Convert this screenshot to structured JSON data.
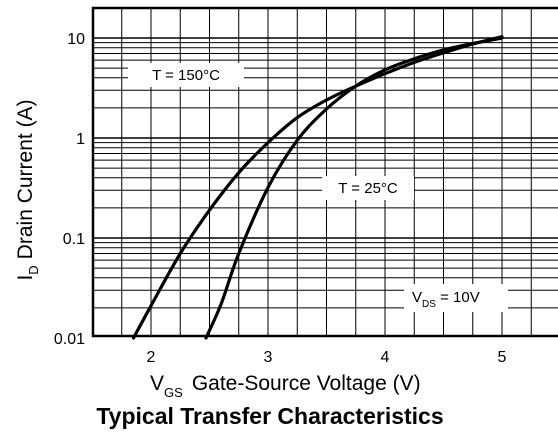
{
  "chart_data": {
    "type": "line",
    "title": "Typical Transfer Characteristics",
    "xlabel": {
      "main": "V",
      "sub": "GS",
      "rest": "Gate-Source Voltage (V)"
    },
    "ylabel": {
      "main": "I",
      "sub": "D",
      "rest": "Drain Current (A)"
    },
    "xlim": [
      1.5,
      5.5
    ],
    "ylim": [
      0.01,
      20
    ],
    "yscale": "log",
    "grid": true,
    "x_ticks": [
      2,
      3,
      4,
      5
    ],
    "x_tick_labels": [
      "2",
      "3",
      "4",
      "5"
    ],
    "y_ticks": [
      0.01,
      0.1,
      1,
      10
    ],
    "y_tick_labels": [
      "0.01",
      "0.1",
      "1",
      "10"
    ],
    "series": [
      {
        "name": "T = 150°C",
        "x": [
          1.85,
          2.0,
          2.25,
          2.5,
          2.75,
          3.0,
          3.25,
          3.5,
          3.75,
          4.0,
          4.25,
          4.5,
          4.75,
          5.0
        ],
        "y": [
          0.01,
          0.021,
          0.07,
          0.19,
          0.45,
          0.9,
          1.6,
          2.4,
          3.3,
          4.4,
          5.7,
          7.1,
          8.7,
          10.3
        ]
      },
      {
        "name": "T = 25°C",
        "x": [
          2.47,
          2.6,
          2.75,
          3.0,
          3.25,
          3.5,
          3.75,
          4.0,
          4.25,
          4.5,
          4.75,
          5.0
        ],
        "y": [
          0.01,
          0.022,
          0.07,
          0.32,
          0.95,
          1.95,
          3.3,
          4.8,
          6.2,
          7.6,
          8.8,
          10.0
        ]
      }
    ],
    "annotations": [
      {
        "text": "T = 150°C"
      },
      {
        "text": "T = 25°C"
      },
      {
        "main": "V",
        "sub": "DS",
        "rest": " = 10V"
      }
    ]
  }
}
